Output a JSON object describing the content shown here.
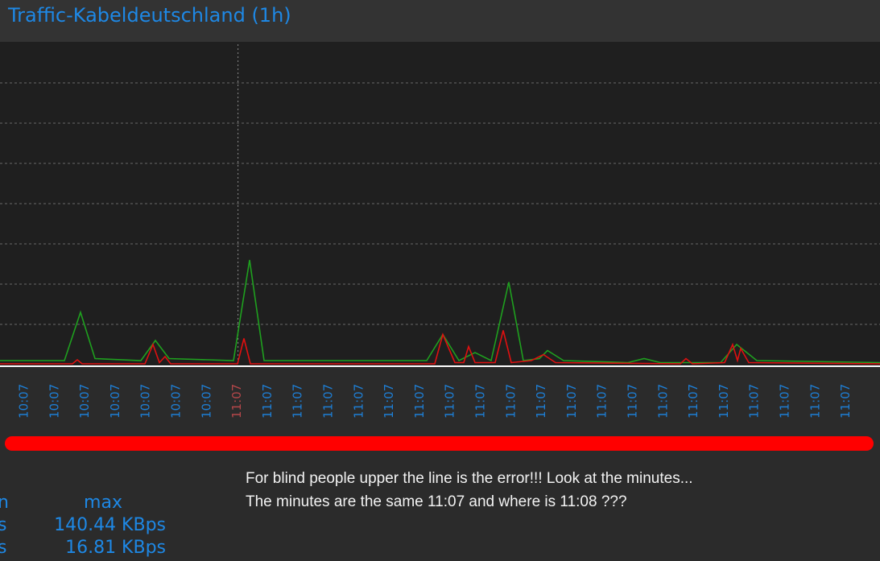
{
  "chart_data": {
    "type": "line",
    "title": "Traffic-Kabeldeutschland (1h)",
    "categories": [
      "10:07",
      "10:07",
      "10:07",
      "10:07",
      "10:07",
      "10:07",
      "10:07",
      "11:07",
      "11:07",
      "11:07",
      "11:07",
      "11:07",
      "11:07",
      "11:07",
      "11:07",
      "11:07",
      "11:07",
      "11:07",
      "11:07",
      "11:07",
      "11:07",
      "11:07",
      "11:07",
      "11:07",
      "11:07",
      "11:07",
      "11:07",
      "11:07"
    ],
    "category_color": "#1e7fd6",
    "highlight_color": "#b5474a",
    "xlim": [
      0,
      1093
    ],
    "ylim": [
      0,
      8
    ],
    "yticks": [
      1,
      2,
      3,
      4,
      5,
      6,
      7
    ],
    "grid": true,
    "series": [
      {
        "color": "#1fa01f",
        "x": [
          0,
          80,
          100,
          118,
          175,
          193,
          210,
          290,
          310,
          328,
          530,
          550,
          570,
          590,
          610,
          632,
          650,
          670,
          680,
          700,
          780,
          800,
          820,
          895,
          915,
          940,
          1093
        ],
        "values": [
          0.1,
          0.1,
          1.3,
          0.15,
          0.1,
          0.6,
          0.15,
          0.1,
          2.6,
          0.1,
          0.1,
          0.75,
          0.1,
          0.3,
          0.1,
          2.05,
          0.1,
          0.15,
          0.35,
          0.1,
          0.05,
          0.15,
          0.05,
          0.05,
          0.5,
          0.1,
          0.05
        ]
      },
      {
        "color": "#e01010",
        "x": [
          0,
          90,
          96,
          102,
          180,
          190,
          198,
          205,
          212,
          295,
          303,
          311,
          540,
          550,
          565,
          576,
          582,
          590,
          615,
          625,
          635,
          660,
          675,
          690,
          845,
          852,
          860,
          900,
          910,
          916,
          920,
          930,
          1093
        ],
        "values": [
          0.02,
          0.02,
          0.12,
          0.02,
          0.02,
          0.5,
          0.05,
          0.2,
          0.02,
          0.02,
          0.65,
          0.02,
          0.02,
          0.75,
          0.05,
          0.05,
          0.45,
          0.05,
          0.05,
          0.85,
          0.05,
          0.1,
          0.25,
          0.05,
          0.02,
          0.15,
          0.02,
          0.05,
          0.5,
          0.1,
          0.4,
          0.05,
          0.02
        ]
      }
    ]
  },
  "annotation": [
    "For blind people upper the line is the error!!! Look at the minutes...",
    "The minutes are the same 11:07 and where is 11:08 ???"
  ],
  "stats": {
    "header": [
      "n",
      "max"
    ],
    "rows": [
      [
        "s",
        "140.44 KBps"
      ],
      [
        "s",
        "16.81 KBps"
      ]
    ]
  }
}
